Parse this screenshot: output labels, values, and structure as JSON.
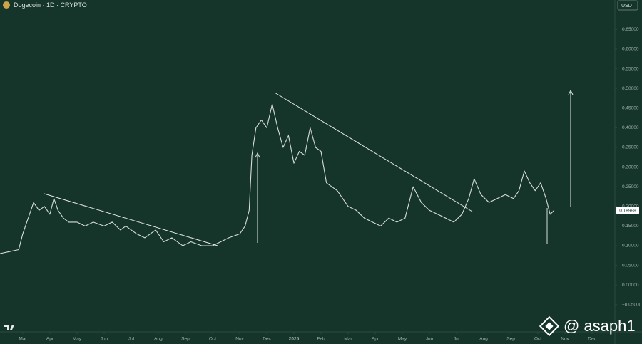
{
  "chart_data": {
    "type": "line",
    "title": "Dogecoin · 1D · CRYPTO",
    "currency": "USD",
    "watermark": "@ asaph1",
    "color": "#d9dcd9",
    "grid": false,
    "last_price": 0.18998,
    "x": [
      -0.84,
      -0.5,
      -0.15,
      0,
      0.2,
      0.4,
      0.6,
      0.8,
      1.0,
      1.15,
      1.3,
      1.5,
      1.7,
      2.0,
      2.3,
      2.6,
      3.0,
      3.3,
      3.6,
      3.8,
      4.2,
      4.5,
      4.9,
      5.2,
      5.5,
      5.9,
      6.2,
      6.6,
      7.0,
      7.3,
      7.6,
      8.0,
      8.2,
      8.35,
      8.45,
      8.6,
      8.8,
      9.0,
      9.2,
      9.4,
      9.6,
      9.8,
      10.0,
      10.2,
      10.4,
      10.6,
      10.8,
      11.0,
      11.2,
      11.4,
      11.6,
      11.8,
      12.0,
      12.3,
      12.6,
      12.9,
      13.2,
      13.5,
      13.8,
      14.1,
      14.4,
      14.7,
      15.0,
      15.3,
      15.6,
      15.9,
      16.2,
      16.45,
      16.65,
      16.9,
      17.2,
      17.5,
      17.8,
      18.1,
      18.3,
      18.5,
      18.7,
      18.9,
      19.1,
      19.3,
      19.45,
      19.6
    ],
    "values": [
      0.08,
      0.085,
      0.09,
      0.13,
      0.17,
      0.21,
      0.19,
      0.2,
      0.18,
      0.22,
      0.19,
      0.17,
      0.16,
      0.16,
      0.15,
      0.16,
      0.15,
      0.16,
      0.14,
      0.15,
      0.13,
      0.12,
      0.14,
      0.11,
      0.12,
      0.1,
      0.11,
      0.1,
      0.1,
      0.11,
      0.12,
      0.13,
      0.15,
      0.19,
      0.33,
      0.4,
      0.42,
      0.4,
      0.46,
      0.4,
      0.35,
      0.38,
      0.31,
      0.34,
      0.33,
      0.4,
      0.35,
      0.34,
      0.26,
      0.25,
      0.24,
      0.22,
      0.2,
      0.19,
      0.17,
      0.16,
      0.15,
      0.17,
      0.16,
      0.17,
      0.25,
      0.21,
      0.19,
      0.18,
      0.17,
      0.16,
      0.18,
      0.22,
      0.27,
      0.23,
      0.21,
      0.22,
      0.23,
      0.22,
      0.24,
      0.29,
      0.26,
      0.24,
      0.26,
      0.22,
      0.18,
      0.19
    ],
    "xlim": [
      -0.84,
      21.84
    ],
    "xticks": [
      {
        "value": 0,
        "label": "Mar"
      },
      {
        "value": 1,
        "label": "Apr"
      },
      {
        "value": 2,
        "label": "May"
      },
      {
        "value": 3,
        "label": "Jun"
      },
      {
        "value": 4,
        "label": "Jul"
      },
      {
        "value": 5,
        "label": "Aug"
      },
      {
        "value": 6,
        "label": "Sep"
      },
      {
        "value": 7,
        "label": "Oct"
      },
      {
        "value": 8,
        "label": "Nov"
      },
      {
        "value": 9,
        "label": "Dec"
      },
      {
        "value": 10,
        "label": "2025"
      },
      {
        "value": 11,
        "label": "Feb"
      },
      {
        "value": 12,
        "label": "Mar"
      },
      {
        "value": 13,
        "label": "Apr"
      },
      {
        "value": 14,
        "label": "May"
      },
      {
        "value": 15,
        "label": "Jun"
      },
      {
        "value": 16,
        "label": "Jul"
      },
      {
        "value": 17,
        "label": "Aug"
      },
      {
        "value": 18,
        "label": "Sep"
      },
      {
        "value": 19,
        "label": "Oct"
      },
      {
        "value": 20,
        "label": "Nov"
      },
      {
        "value": 21,
        "label": "Dec"
      }
    ],
    "ylim": [
      -0.112,
      0.725
    ],
    "yticks": [
      {
        "value": -0.05,
        "label": "−0.05000"
      },
      {
        "value": 0,
        "label": "0.00000"
      },
      {
        "value": 0.05,
        "label": "0.05000"
      },
      {
        "value": 0.1,
        "label": "0.10000"
      },
      {
        "value": 0.15,
        "label": "0.15000"
      },
      {
        "value": 0.2,
        "label": "0.20000"
      },
      {
        "value": 0.25,
        "label": "0.25000"
      },
      {
        "value": 0.3,
        "label": "0.30000"
      },
      {
        "value": 0.35,
        "label": "0.35000"
      },
      {
        "value": 0.4,
        "label": "0.40000"
      },
      {
        "value": 0.45,
        "label": "0.45000"
      },
      {
        "value": 0.5,
        "label": "0.50000"
      },
      {
        "value": 0.55,
        "label": "0.55000"
      },
      {
        "value": 0.6,
        "label": "0.60000"
      },
      {
        "value": 0.65,
        "label": "0.65000"
      }
    ]
  }
}
